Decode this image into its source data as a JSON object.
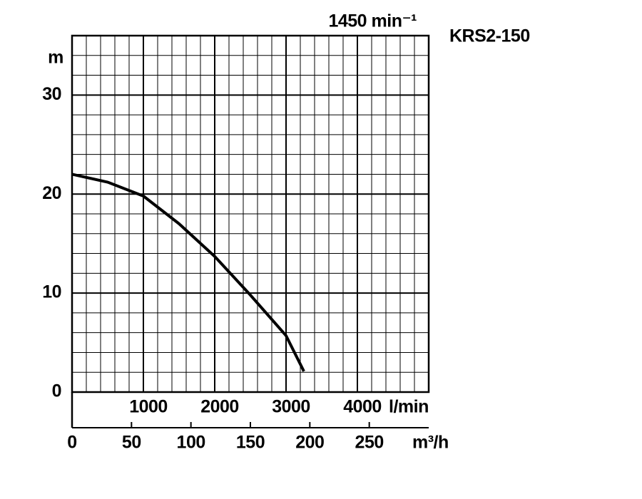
{
  "chart_data": {
    "type": "line",
    "title": "KRS2-150",
    "subtitle": "1450 min⁻¹",
    "ylabel": "m",
    "xlabel": "l/min",
    "x2label": "m³/h",
    "x": [
      0,
      500,
      1000,
      1500,
      2000,
      2500,
      3000,
      3250
    ],
    "series": [
      {
        "name": "KRS2-150",
        "color": "#000000",
        "values": [
          22,
          21.2,
          19.8,
          17,
          13.7,
          9.8,
          5.7,
          2.1
        ]
      }
    ],
    "xlim": [
      0,
      5000
    ],
    "xticks": [
      1000,
      2000,
      3000,
      4000
    ],
    "x2lim": [
      0,
      300
    ],
    "x2ticks": [
      0,
      50,
      100,
      150,
      200,
      250
    ],
    "ylim": [
      0,
      36
    ],
    "yticks": [
      0,
      10,
      20,
      30
    ],
    "grid": true
  }
}
